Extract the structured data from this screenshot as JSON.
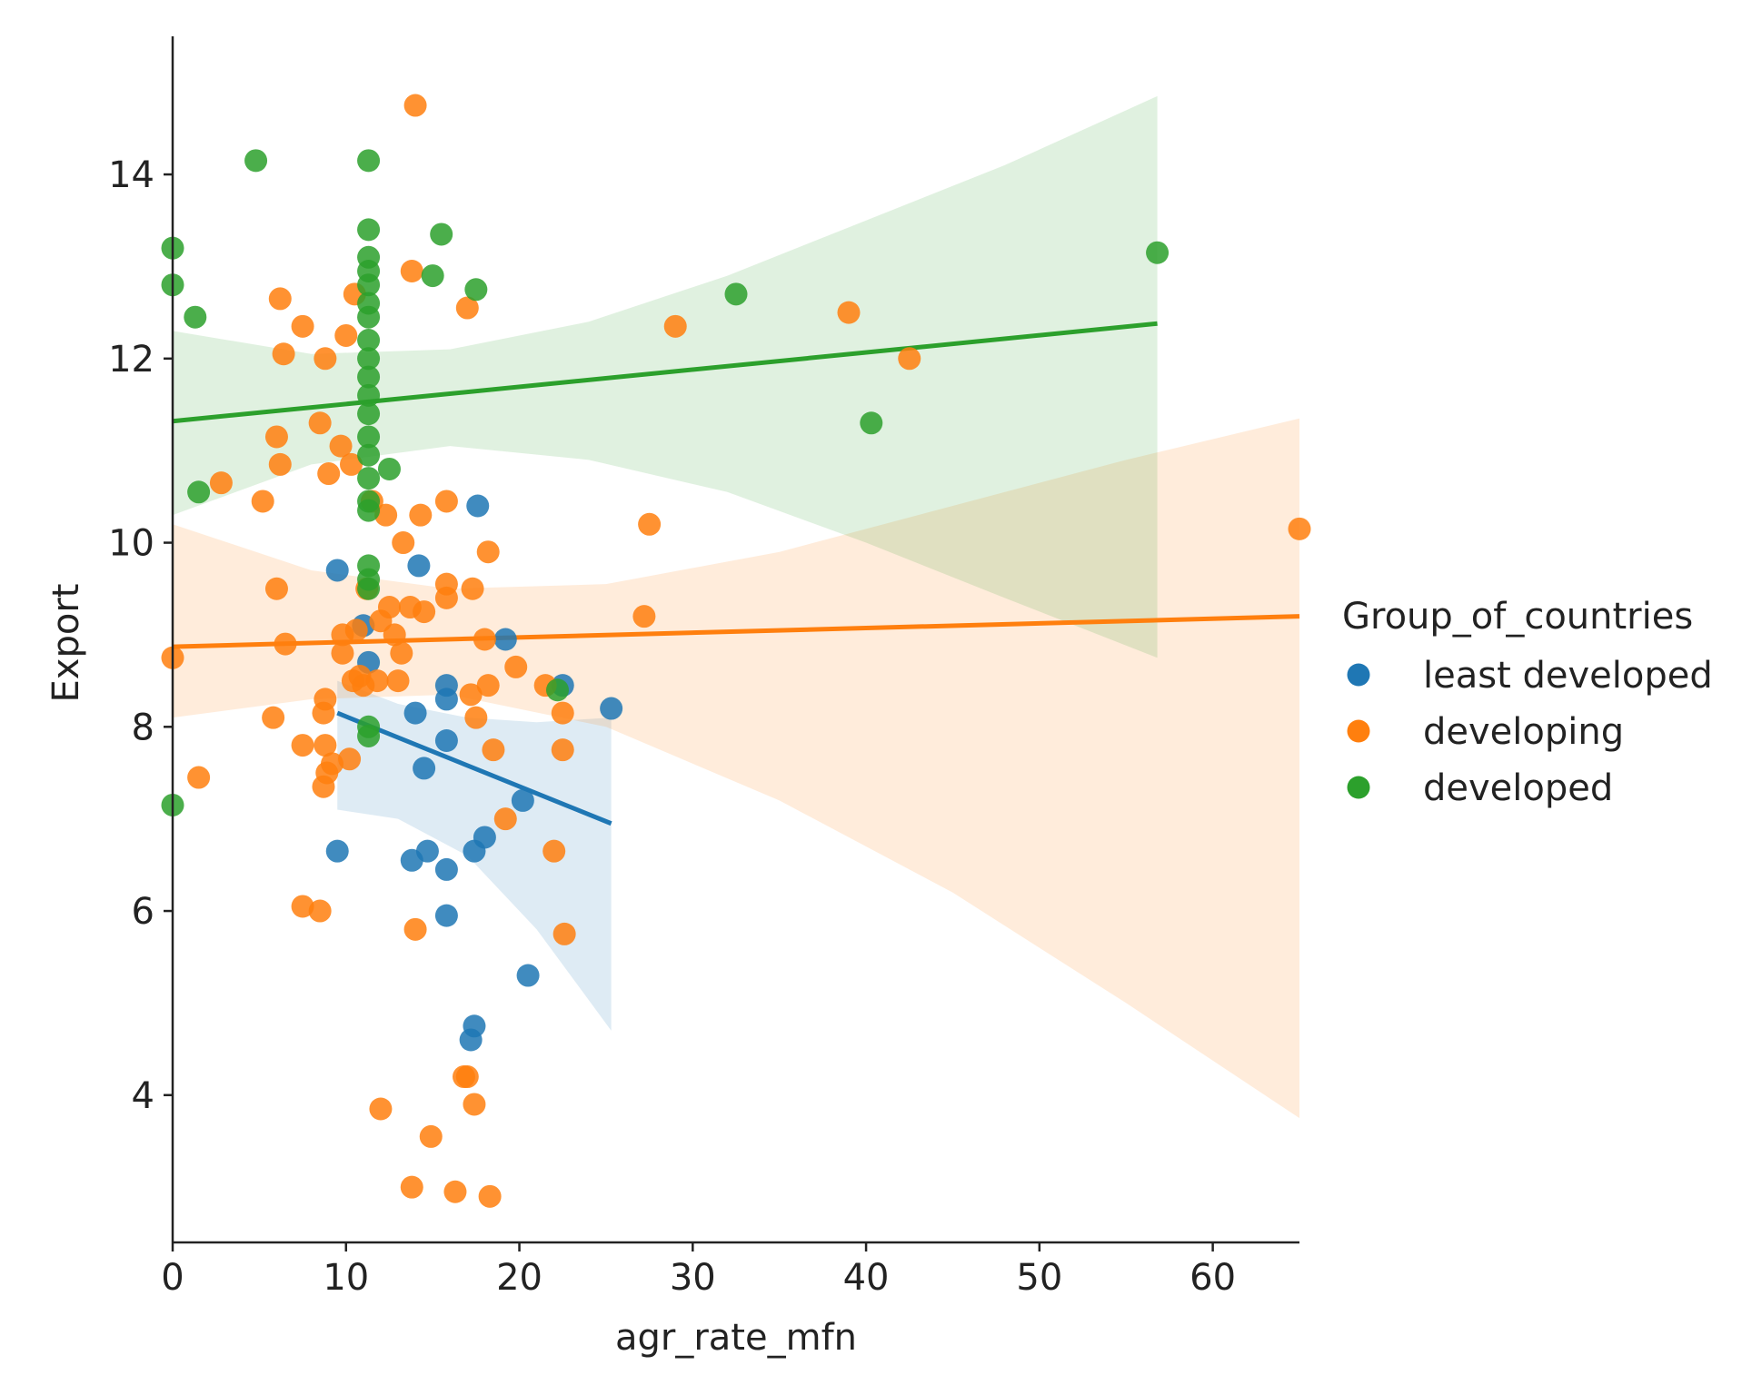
{
  "chart_data": {
    "type": "scatter",
    "title": "",
    "xlabel": "agr_rate_mfn",
    "ylabel": "Export",
    "xlim": [
      0,
      65
    ],
    "ylim": [
      2.4,
      15.5
    ],
    "xticks": [
      0,
      10,
      20,
      30,
      40,
      50,
      60
    ],
    "yticks": [
      4,
      6,
      8,
      10,
      12,
      14
    ],
    "grid": false,
    "legend": {
      "title": "Group_of_countries",
      "position": "right"
    },
    "series": [
      {
        "name": "least developed",
        "color": "#1f77b4",
        "points": [
          [
            9.5,
            9.7
          ],
          [
            9.5,
            6.65
          ],
          [
            11.0,
            9.1
          ],
          [
            11.3,
            8.7
          ],
          [
            13.8,
            6.55
          ],
          [
            14.0,
            8.15
          ],
          [
            14.2,
            9.75
          ],
          [
            14.5,
            7.55
          ],
          [
            14.7,
            6.65
          ],
          [
            15.8,
            8.45
          ],
          [
            15.8,
            8.3
          ],
          [
            15.8,
            7.85
          ],
          [
            15.8,
            6.45
          ],
          [
            15.8,
            5.95
          ],
          [
            17.2,
            4.6
          ],
          [
            17.4,
            4.75
          ],
          [
            17.4,
            6.65
          ],
          [
            17.6,
            10.4
          ],
          [
            18.0,
            6.8
          ],
          [
            19.2,
            8.95
          ],
          [
            20.2,
            7.2
          ],
          [
            20.5,
            5.3
          ],
          [
            22.5,
            8.45
          ],
          [
            25.3,
            8.2
          ]
        ],
        "fit": {
          "x0": 9.5,
          "y0": 8.15,
          "x1": 25.3,
          "y1": 6.95
        },
        "band": {
          "upper": [
            [
              9.5,
              8.5
            ],
            [
              13,
              8.25
            ],
            [
              17,
              8.1
            ],
            [
              21,
              8.05
            ],
            [
              25.3,
              8.1
            ]
          ],
          "lower": [
            [
              9.5,
              7.1
            ],
            [
              13,
              7.0
            ],
            [
              17,
              6.6
            ],
            [
              21,
              5.8
            ],
            [
              25.3,
              4.7
            ]
          ]
        }
      },
      {
        "name": "developing",
        "color": "#ff7f0e",
        "points": [
          [
            0.0,
            8.75
          ],
          [
            1.5,
            7.45
          ],
          [
            2.8,
            10.65
          ],
          [
            5.2,
            10.45
          ],
          [
            5.8,
            8.1
          ],
          [
            6.0,
            9.5
          ],
          [
            6.0,
            11.15
          ],
          [
            6.2,
            10.85
          ],
          [
            6.2,
            12.65
          ],
          [
            6.4,
            12.05
          ],
          [
            6.5,
            8.9
          ],
          [
            7.5,
            6.05
          ],
          [
            7.5,
            7.8
          ],
          [
            7.5,
            12.35
          ],
          [
            8.5,
            6.0
          ],
          [
            8.5,
            11.3
          ],
          [
            8.7,
            7.35
          ],
          [
            8.7,
            8.15
          ],
          [
            8.8,
            7.8
          ],
          [
            8.8,
            8.3
          ],
          [
            8.8,
            12.0
          ],
          [
            8.9,
            7.5
          ],
          [
            9.0,
            10.75
          ],
          [
            9.2,
            7.6
          ],
          [
            9.7,
            11.05
          ],
          [
            9.8,
            8.8
          ],
          [
            9.8,
            9.0
          ],
          [
            10.0,
            12.25
          ],
          [
            10.2,
            7.65
          ],
          [
            10.3,
            10.85
          ],
          [
            10.4,
            8.5
          ],
          [
            10.5,
            12.7
          ],
          [
            10.6,
            9.05
          ],
          [
            10.8,
            8.55
          ],
          [
            11.0,
            8.45
          ],
          [
            11.2,
            9.5
          ],
          [
            11.5,
            10.45
          ],
          [
            11.8,
            8.5
          ],
          [
            12.0,
            3.85
          ],
          [
            12.0,
            9.15
          ],
          [
            12.3,
            10.3
          ],
          [
            12.5,
            9.3
          ],
          [
            12.8,
            9.0
          ],
          [
            13.0,
            8.5
          ],
          [
            13.2,
            8.8
          ],
          [
            13.3,
            10.0
          ],
          [
            13.7,
            9.3
          ],
          [
            13.8,
            3.0
          ],
          [
            13.8,
            12.95
          ],
          [
            14.0,
            14.75
          ],
          [
            14.0,
            5.8
          ],
          [
            14.3,
            10.3
          ],
          [
            14.5,
            9.25
          ],
          [
            14.9,
            3.55
          ],
          [
            15.8,
            9.55
          ],
          [
            15.8,
            9.4
          ],
          [
            15.8,
            10.45
          ],
          [
            16.3,
            2.95
          ],
          [
            16.8,
            4.2
          ],
          [
            17.0,
            4.2
          ],
          [
            17.0,
            12.55
          ],
          [
            17.2,
            8.35
          ],
          [
            17.3,
            9.5
          ],
          [
            17.4,
            3.9
          ],
          [
            17.5,
            8.1
          ],
          [
            18.0,
            8.95
          ],
          [
            18.2,
            9.9
          ],
          [
            18.2,
            8.45
          ],
          [
            18.3,
            2.9
          ],
          [
            18.5,
            7.75
          ],
          [
            19.2,
            7.0
          ],
          [
            19.8,
            8.65
          ],
          [
            21.5,
            8.45
          ],
          [
            22.0,
            6.65
          ],
          [
            22.5,
            7.75
          ],
          [
            22.5,
            8.15
          ],
          [
            22.6,
            5.75
          ],
          [
            27.2,
            9.2
          ],
          [
            27.5,
            10.2
          ],
          [
            29.0,
            12.35
          ],
          [
            39.0,
            12.5
          ],
          [
            42.5,
            12.0
          ],
          [
            65.0,
            10.15
          ]
        ],
        "fit": {
          "x0": 0,
          "y0": 8.87,
          "x1": 65,
          "y1": 9.2
        },
        "band": {
          "upper": [
            [
              0,
              10.2
            ],
            [
              8,
              9.7
            ],
            [
              16,
              9.5
            ],
            [
              25,
              9.55
            ],
            [
              35,
              9.9
            ],
            [
              45,
              10.4
            ],
            [
              55,
              10.9
            ],
            [
              65,
              11.35
            ]
          ],
          "lower": [
            [
              0,
              8.1
            ],
            [
              8,
              8.3
            ],
            [
              16,
              8.35
            ],
            [
              25,
              8.0
            ],
            [
              35,
              7.2
            ],
            [
              45,
              6.2
            ],
            [
              55,
              5.0
            ],
            [
              65,
              3.75
            ]
          ]
        }
      },
      {
        "name": "developed",
        "color": "#2ca02c",
        "points": [
          [
            0.0,
            13.2
          ],
          [
            0.0,
            12.8
          ],
          [
            0.0,
            7.15
          ],
          [
            1.3,
            12.45
          ],
          [
            1.5,
            10.55
          ],
          [
            4.8,
            14.15
          ],
          [
            11.3,
            14.15
          ],
          [
            11.3,
            13.4
          ],
          [
            11.3,
            13.1
          ],
          [
            11.3,
            12.95
          ],
          [
            11.3,
            12.8
          ],
          [
            11.3,
            12.6
          ],
          [
            11.3,
            12.45
          ],
          [
            11.3,
            12.2
          ],
          [
            11.3,
            12.0
          ],
          [
            11.3,
            11.8
          ],
          [
            11.3,
            11.6
          ],
          [
            11.3,
            11.4
          ],
          [
            11.3,
            11.15
          ],
          [
            11.3,
            10.95
          ],
          [
            11.3,
            10.7
          ],
          [
            11.3,
            10.45
          ],
          [
            11.3,
            10.35
          ],
          [
            11.3,
            9.75
          ],
          [
            11.3,
            9.6
          ],
          [
            11.3,
            9.5
          ],
          [
            11.3,
            8.0
          ],
          [
            11.3,
            7.9
          ],
          [
            12.5,
            10.8
          ],
          [
            15.0,
            12.9
          ],
          [
            15.5,
            13.35
          ],
          [
            17.5,
            12.75
          ],
          [
            22.2,
            8.4
          ],
          [
            32.5,
            12.7
          ],
          [
            40.3,
            11.3
          ],
          [
            56.8,
            13.15
          ]
        ],
        "fit": {
          "x0": 0,
          "y0": 11.32,
          "x1": 56.8,
          "y1": 12.38
        },
        "band": {
          "upper": [
            [
              0,
              12.3
            ],
            [
              8,
              12.05
            ],
            [
              16,
              12.1
            ],
            [
              24,
              12.4
            ],
            [
              32,
              12.9
            ],
            [
              40,
              13.5
            ],
            [
              48,
              14.1
            ],
            [
              56.8,
              14.85
            ]
          ],
          "lower": [
            [
              0,
              10.3
            ],
            [
              8,
              10.85
            ],
            [
              16,
              11.05
            ],
            [
              24,
              10.9
            ],
            [
              32,
              10.55
            ],
            [
              40,
              10.0
            ],
            [
              48,
              9.4
            ],
            [
              56.8,
              8.75
            ]
          ]
        }
      }
    ]
  }
}
